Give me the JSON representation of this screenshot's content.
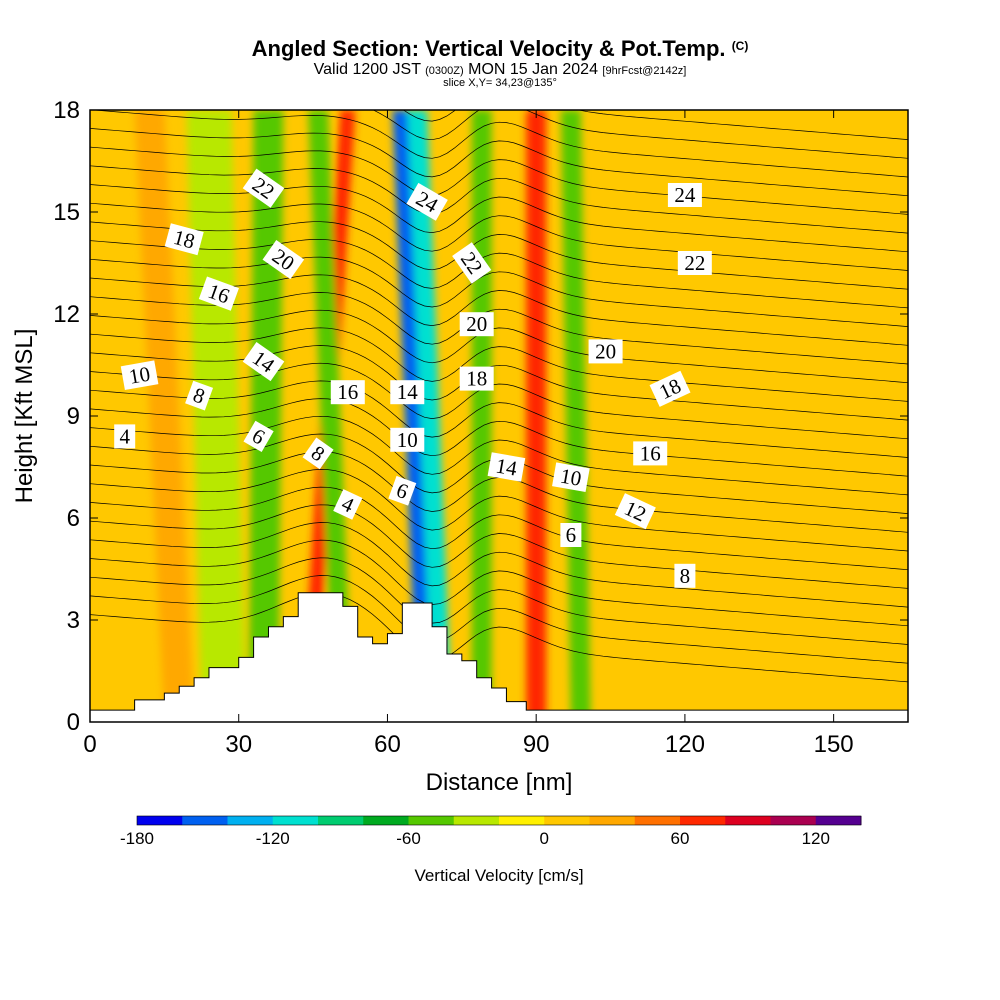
{
  "header": {
    "title_main": "Angled Section: Vertical Velocity & Pot.Temp.",
    "title_mark": "(C)",
    "valid_prefix": "Valid 1200 JST",
    "valid_utc": "(0300Z)",
    "valid_day": "MON 15 Jan 2024",
    "forecast_tag": "[9hrFcst@2142z]",
    "slice_info": "slice X,Y= 34,23@135°"
  },
  "chart_data": {
    "type": "heatmap",
    "xlabel": "Distance [nm]",
    "ylabel": "Height [Kft MSL]",
    "xlim": [
      0,
      165
    ],
    "ylim": [
      0,
      18
    ],
    "x_ticks": [
      0,
      30,
      60,
      90,
      120,
      150
    ],
    "y_ticks": [
      0,
      3,
      6,
      9,
      12,
      15,
      18
    ],
    "colorbar": {
      "label": "Vertical Velocity [cm/s]",
      "range": [
        -180,
        140
      ],
      "tick_values": [
        -180,
        -120,
        -60,
        0,
        60,
        120
      ],
      "tick_labels": [
        "-180",
        "-120",
        "-60",
        "0",
        "60",
        "120"
      ],
      "colors": [
        "#0000ee",
        "#0060f0",
        "#00b0f0",
        "#00e0d0",
        "#00cc70",
        "#00aa20",
        "#55c800",
        "#b8e800",
        "#fff000",
        "#ffc800",
        "#ffa800",
        "#ff7000",
        "#ff2800",
        "#dd0020",
        "#aa0050",
        "#550090"
      ]
    },
    "velocity_bands": [
      {
        "x_bottom": 35,
        "x_top": 36,
        "width": 6,
        "value": -55
      },
      {
        "x_bottom": 27,
        "x_top": 24,
        "width": 9,
        "value": -35
      },
      {
        "x_bottom": 44,
        "x_top": 52,
        "width": 3,
        "value": 70
      },
      {
        "x_bottom": 51,
        "x_top": 46,
        "width": 4,
        "value": -60
      },
      {
        "x_bottom": 68,
        "x_top": 63,
        "width": 4,
        "value": -150
      },
      {
        "x_bottom": 71,
        "x_top": 66,
        "width": 4,
        "value": -110
      },
      {
        "x_bottom": 79,
        "x_top": 79,
        "width": 4,
        "value": -60
      },
      {
        "x_bottom": 90,
        "x_top": 90,
        "width": 4,
        "value": 75
      },
      {
        "x_bottom": 99,
        "x_top": 97,
        "width": 4,
        "value": -50
      },
      {
        "x_bottom": 18,
        "x_top": 12,
        "width": 6,
        "value": 35
      }
    ],
    "terrain_profile": [
      {
        "x": 0,
        "h": 0.35
      },
      {
        "x": 9,
        "h": 0.35
      },
      {
        "x": 9,
        "h": 0.65
      },
      {
        "x": 15,
        "h": 0.65
      },
      {
        "x": 15,
        "h": 0.85
      },
      {
        "x": 18,
        "h": 0.85
      },
      {
        "x": 18,
        "h": 1.05
      },
      {
        "x": 21,
        "h": 1.05
      },
      {
        "x": 21,
        "h": 1.3
      },
      {
        "x": 24,
        "h": 1.3
      },
      {
        "x": 24,
        "h": 1.6
      },
      {
        "x": 30,
        "h": 1.6
      },
      {
        "x": 30,
        "h": 1.9
      },
      {
        "x": 33,
        "h": 1.9
      },
      {
        "x": 33,
        "h": 2.5
      },
      {
        "x": 36,
        "h": 2.5
      },
      {
        "x": 36,
        "h": 2.8
      },
      {
        "x": 39,
        "h": 2.8
      },
      {
        "x": 39,
        "h": 3.1
      },
      {
        "x": 42,
        "h": 3.1
      },
      {
        "x": 42,
        "h": 3.8
      },
      {
        "x": 51,
        "h": 3.8
      },
      {
        "x": 51,
        "h": 3.4
      },
      {
        "x": 54,
        "h": 3.4
      },
      {
        "x": 54,
        "h": 2.5
      },
      {
        "x": 57,
        "h": 2.5
      },
      {
        "x": 57,
        "h": 2.3
      },
      {
        "x": 60,
        "h": 2.3
      },
      {
        "x": 60,
        "h": 2.6
      },
      {
        "x": 63,
        "h": 2.6
      },
      {
        "x": 63,
        "h": 3.5
      },
      {
        "x": 69,
        "h": 3.5
      },
      {
        "x": 69,
        "h": 2.8
      },
      {
        "x": 72,
        "h": 2.8
      },
      {
        "x": 72,
        "h": 2.0
      },
      {
        "x": 75,
        "h": 2.0
      },
      {
        "x": 75,
        "h": 1.8
      },
      {
        "x": 78,
        "h": 1.8
      },
      {
        "x": 78,
        "h": 1.3
      },
      {
        "x": 81,
        "h": 1.3
      },
      {
        "x": 81,
        "h": 1.0
      },
      {
        "x": 84,
        "h": 1.0
      },
      {
        "x": 84,
        "h": 0.6
      },
      {
        "x": 88,
        "h": 0.6
      },
      {
        "x": 88,
        "h": 0.35
      },
      {
        "x": 165,
        "h": 0.35
      }
    ],
    "isentrope_labels": [
      {
        "text": "22",
        "x": 35,
        "y": 15.7,
        "angle": 35
      },
      {
        "text": "24",
        "x": 68,
        "y": 15.3,
        "angle": 30
      },
      {
        "text": "24",
        "x": 120,
        "y": 15.5,
        "angle": 0
      },
      {
        "text": "18",
        "x": 19,
        "y": 14.2,
        "angle": 15
      },
      {
        "text": "20",
        "x": 39,
        "y": 13.6,
        "angle": 35
      },
      {
        "text": "22",
        "x": 77,
        "y": 13.5,
        "angle": 55
      },
      {
        "text": "22",
        "x": 122,
        "y": 13.5,
        "angle": 0
      },
      {
        "text": "16",
        "x": 26,
        "y": 12.6,
        "angle": 20
      },
      {
        "text": "20",
        "x": 78,
        "y": 11.7,
        "angle": 0
      },
      {
        "text": "14",
        "x": 35,
        "y": 10.6,
        "angle": 35
      },
      {
        "text": "20",
        "x": 104,
        "y": 10.9,
        "angle": 0
      },
      {
        "text": "10",
        "x": 10,
        "y": 10.2,
        "angle": -10
      },
      {
        "text": "18",
        "x": 78,
        "y": 10.1,
        "angle": 0
      },
      {
        "text": "16",
        "x": 52,
        "y": 9.7,
        "angle": 0
      },
      {
        "text": "14",
        "x": 64,
        "y": 9.7,
        "angle": 0
      },
      {
        "text": "18",
        "x": 117,
        "y": 9.8,
        "angle": -25
      },
      {
        "text": "8",
        "x": 22,
        "y": 9.6,
        "angle": 20
      },
      {
        "text": "4",
        "x": 7,
        "y": 8.4,
        "angle": 0
      },
      {
        "text": "6",
        "x": 34,
        "y": 8.4,
        "angle": 30
      },
      {
        "text": "8",
        "x": 46,
        "y": 7.9,
        "angle": 35
      },
      {
        "text": "10",
        "x": 64,
        "y": 8.3,
        "angle": 0
      },
      {
        "text": "16",
        "x": 113,
        "y": 7.9,
        "angle": 0
      },
      {
        "text": "14",
        "x": 84,
        "y": 7.5,
        "angle": 10
      },
      {
        "text": "10",
        "x": 97,
        "y": 7.2,
        "angle": 10
      },
      {
        "text": "6",
        "x": 63,
        "y": 6.8,
        "angle": 20
      },
      {
        "text": "12",
        "x": 110,
        "y": 6.2,
        "angle": 25
      },
      {
        "text": "4",
        "x": 52,
        "y": 6.4,
        "angle": 25
      },
      {
        "text": "6",
        "x": 97,
        "y": 5.5,
        "angle": 0
      },
      {
        "text": "8",
        "x": 120,
        "y": 4.3,
        "angle": 0
      }
    ]
  }
}
